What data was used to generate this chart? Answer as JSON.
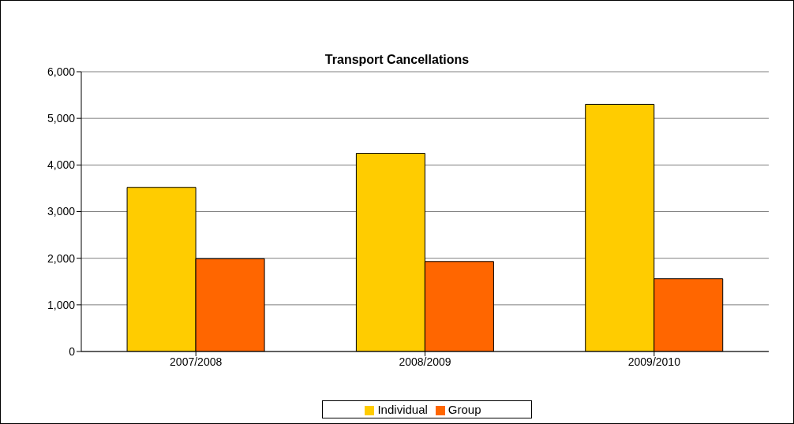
{
  "chart_data": {
    "type": "bar",
    "title": "Transport Cancellations",
    "categories": [
      "2007/2008",
      "2008/2009",
      "2009/2010"
    ],
    "series": [
      {
        "name": "Individual",
        "color": "#ffcc00",
        "values": [
          3520,
          4250,
          5300
        ]
      },
      {
        "name": "Group",
        "color": "#ff6600",
        "values": [
          1990,
          1930,
          1560
        ]
      }
    ],
    "ylim": [
      0,
      6000
    ],
    "yticks": [
      0,
      {
        "value": 1000,
        "label": "1,000"
      },
      {
        "value": 2000,
        "label": "2,000"
      },
      {
        "value": 3000,
        "label": "3,000"
      },
      {
        "value": 4000,
        "label": "4,000"
      },
      {
        "value": 5000,
        "label": "5,000"
      },
      {
        "value": 6000,
        "label": "6,000"
      }
    ],
    "grid": "y",
    "legend": "bottom"
  }
}
